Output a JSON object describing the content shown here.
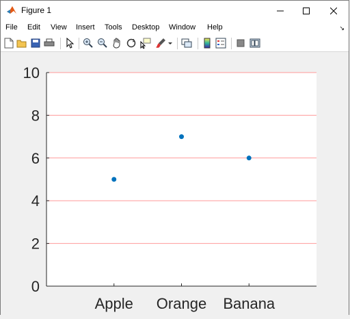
{
  "window": {
    "title": "Figure 1"
  },
  "menu": {
    "items": [
      {
        "label": "File"
      },
      {
        "label": "Edit"
      },
      {
        "label": "View"
      },
      {
        "label": "Insert"
      },
      {
        "label": "Tools"
      },
      {
        "label": "Desktop"
      },
      {
        "label": "Window"
      },
      {
        "label": "Help"
      }
    ]
  },
  "toolbar": {
    "icons": [
      "new-figure-icon",
      "open-file-icon",
      "save-icon",
      "print-icon",
      "edit-plot-icon",
      "zoom-in-icon",
      "zoom-out-icon",
      "pan-icon",
      "rotate-3d-icon",
      "data-cursor-icon",
      "brush-icon",
      "brush-dropdown-icon",
      "link-plot-icon",
      "colorbar-icon",
      "legend-icon",
      "hide-plot-tools-icon",
      "show-plot-tools-icon"
    ]
  },
  "chart_data": {
    "type": "scatter",
    "categories": [
      "Apple",
      "Orange",
      "Banana"
    ],
    "values": [
      5,
      7,
      6
    ],
    "ylim": [
      0,
      10
    ],
    "xlim": [
      0,
      4
    ],
    "yticks": [
      "0",
      "2",
      "4",
      "6",
      "8",
      "10"
    ],
    "grid": "y",
    "colors": {
      "marker": "#0072bd",
      "grid": "#ff9999",
      "axes": "#262626",
      "plot_bg": "#ffffff"
    }
  }
}
